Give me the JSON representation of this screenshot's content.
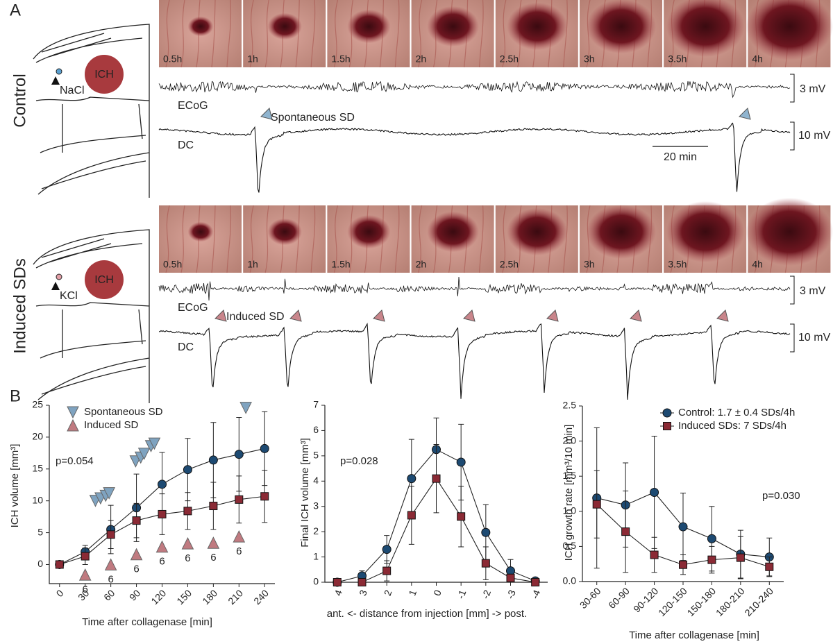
{
  "panel_labels": [
    "A",
    "B"
  ],
  "panel_a": {
    "rows": [
      {
        "label": "Control",
        "injection": "NaCl",
        "ich": "ICH",
        "time_labels": [
          "0.5h",
          "1h",
          "1.5h",
          "2h",
          "2.5h",
          "3h",
          "3.5h",
          "4h"
        ],
        "ecog": "ECoG",
        "dc": "DC",
        "ecog_scale": "3 mV",
        "dc_scale": "10 mV",
        "sd_label": "Spontaneous SD",
        "time_scale": "20 min"
      },
      {
        "label": "Induced SDs",
        "injection": "KCl",
        "ich": "ICH",
        "time_labels": [
          "0.5h",
          "1h",
          "1.5h",
          "2h",
          "2.5h",
          "3h",
          "3.5h",
          "4h"
        ],
        "ecog": "ECoG",
        "dc": "DC",
        "ecog_scale": "3 mV",
        "dc_scale": "10 mV",
        "sd_label": "Induced SD"
      }
    ]
  },
  "chart_data": [
    {
      "type": "line",
      "xlabel": "Time after collagenase [min]",
      "ylabel": "ICH volume [mm³]",
      "annotations": [
        "p=0.054"
      ],
      "legend": "upper left",
      "x": [
        0,
        30,
        60,
        90,
        120,
        150,
        180,
        210,
        240
      ],
      "xlim": [
        -12,
        252
      ],
      "xticks": [
        0,
        30,
        60,
        90,
        120,
        150,
        180,
        210,
        240
      ],
      "ylim": [
        -3,
        25
      ],
      "yticks": [
        0,
        5,
        10,
        15,
        20,
        25
      ],
      "series": [
        {
          "color": "#1d4a72",
          "marker": "circle",
          "values": [
            0,
            2,
            5.5,
            8.9,
            12.6,
            14.9,
            16.4,
            17.3,
            18.2
          ],
          "errors": [
            0,
            1,
            3.8,
            5.3,
            5,
            4.9,
            5.9,
            5.8,
            5.8
          ]
        },
        {
          "color": "#8b2a35",
          "marker": "square",
          "values": [
            0,
            1.3,
            4.7,
            6.9,
            7.9,
            8.4,
            9.2,
            10.2,
            10.7
          ],
          "errors": [
            0,
            1.3,
            2.2,
            2.7,
            3.2,
            2.9,
            3.7,
            3.7,
            4.1
          ]
        },
        {
          "name": "Spontaneous SD",
          "type": "scatter",
          "marker": "triangle-down",
          "color": "#7fa3c0",
          "x": [
            42,
            48,
            54,
            58,
            89,
            95,
            99,
            107,
            111,
            218
          ],
          "values": [
            10,
            10.4,
            10.8,
            11.2,
            16.2,
            16.8,
            17.4,
            18.6,
            19,
            24.6
          ]
        },
        {
          "name": "Induced SD",
          "type": "scatter",
          "marker": "triangle-up",
          "color": "#c07a80",
          "x": [
            30,
            60,
            90,
            120,
            150,
            180,
            210
          ],
          "values": [
            -1.6,
            0,
            1.6,
            2.8,
            3.3,
            3.4,
            4.4
          ],
          "counts": [
            6,
            6,
            6,
            6,
            6,
            6,
            6
          ]
        }
      ]
    },
    {
      "type": "line",
      "xlabel": "ant. <- distance from injection [mm] -> post.",
      "ylabel": "Final ICH volume [mm³]",
      "annotations": [
        "p=0.028"
      ],
      "categories": [
        "4",
        "3",
        "2",
        "1",
        "0",
        "-1",
        "-2",
        "-3",
        "-4"
      ],
      "ylim": [
        0,
        7
      ],
      "yticks": [
        0,
        1,
        2,
        3,
        4,
        5,
        6,
        7
      ],
      "series": [
        {
          "color": "#1d4a72",
          "marker": "circle",
          "values": [
            0,
            0.25,
            1.3,
            4.1,
            5.25,
            4.75,
            1.97,
            0.45,
            0.05
          ],
          "errors": [
            0,
            0.2,
            0.55,
            1.55,
            1.25,
            1.5,
            1.1,
            0.45,
            0.05
          ]
        },
        {
          "color": "#8b2a35",
          "marker": "square",
          "values": [
            0,
            0,
            0.45,
            2.65,
            4.1,
            2.6,
            0.75,
            0.17,
            0
          ],
          "errors": [
            0,
            0,
            0.4,
            1.15,
            1.35,
            1.2,
            0.65,
            0.15,
            0
          ]
        }
      ]
    },
    {
      "type": "line",
      "xlabel": "Time after collagenase [min]",
      "ylabel": "ICH growth rate [mm³/10 min]",
      "annotations": [
        "p=0.030"
      ],
      "legend": "upper right",
      "categories": [
        "30-60",
        "60-90",
        "90-120",
        "120-150",
        "150-180",
        "180-210",
        "210-240"
      ],
      "ylim": [
        0,
        2.5
      ],
      "yticks": [
        {
          "value": 0,
          "label": "0.0"
        },
        {
          "value": 0.5,
          "label": "0.5"
        },
        {
          "value": 1,
          "label": "1.0"
        },
        {
          "value": 1.5,
          "label": "1.5"
        },
        {
          "value": 2,
          "label": "2.0"
        },
        {
          "value": 2.5,
          "label": "2.5"
        }
      ],
      "series": [
        {
          "name": "Control: 1.7 ± 0.4 SDs/4h",
          "color": "#1d4a72",
          "marker": "circle",
          "values": [
            1.19,
            1.09,
            1.27,
            0.78,
            0.61,
            0.39,
            0.35
          ],
          "errors": [
            1,
            0.6,
            0.8,
            0.48,
            0.46,
            0.34,
            0.27
          ]
        },
        {
          "name": "Induced SDs: 7 SDs/4h",
          "color": "#8b2a35",
          "marker": "square",
          "values": [
            1.1,
            0.71,
            0.38,
            0.24,
            0.31,
            0.34,
            0.21
          ],
          "errors": [
            0.48,
            0.58,
            0.25,
            0.14,
            0.19,
            0.3,
            0.14
          ]
        }
      ]
    }
  ]
}
